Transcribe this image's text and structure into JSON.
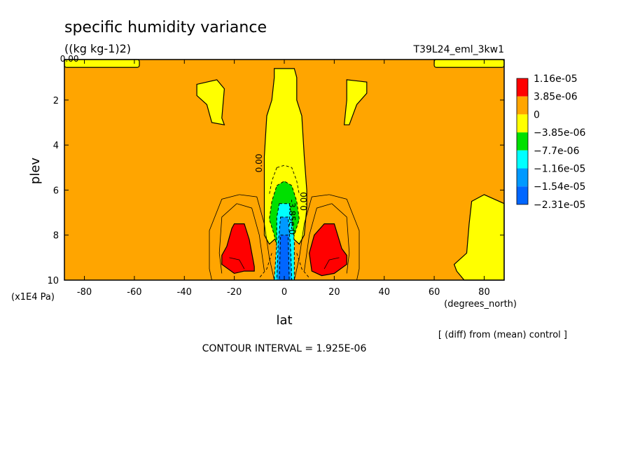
{
  "chart_data": {
    "type": "heatmap",
    "title": "specific humidity variance",
    "units": "((kg kg-1)2)",
    "run_label": "T39L24_eml_3kw1",
    "xlabel": "lat",
    "x_units": "(degrees_north)",
    "ylabel": "plev",
    "y_units": "(x1E4 Pa)",
    "x_ticks": [
      "-80",
      "-60",
      "-40",
      "-20",
      "0",
      "20",
      "40",
      "60",
      "80"
    ],
    "y_ticks": [
      "2",
      "4",
      "6",
      "8",
      "10"
    ],
    "xlim": [
      -88,
      88
    ],
    "ylim": [
      10,
      0.2
    ],
    "legend": {
      "placement": "right",
      "levels": [
        {
          "label": "1.16e-05",
          "color": "#ff0000"
        },
        {
          "label": "3.85e-06",
          "color": "#ffa500"
        },
        {
          "label": "0",
          "color": "#ffff00"
        },
        {
          "label": "−3.85e-06",
          "color": "#00e000"
        },
        {
          "label": "−7.7e-06",
          "color": "#00ffff"
        },
        {
          "label": "−1.16e-05",
          "color": "#0099ff"
        },
        {
          "label": "−1.54e-05",
          "color": "#0066ff"
        },
        {
          "label": "−2.31e-05",
          "color": ""
        }
      ]
    },
    "contour_labels": [
      {
        "text": "0.00",
        "x": -86,
        "y": 0.3,
        "rotate": 0
      },
      {
        "text": "0.00",
        "x": -9,
        "y": 4.8,
        "rotate": -90
      },
      {
        "text": "0.00",
        "x": 9,
        "y": 6.5,
        "rotate": -90
      },
      {
        "text": "-3.85e-0",
        "x": 2,
        "y": 7.2,
        "rotate": 90
      }
    ],
    "regions": {
      "background": "#ffa500",
      "polar_strips": [
        {
          "x": [
            -88,
            -58
          ],
          "y": [
            0.2,
            0.55
          ],
          "color": "#ffff00"
        },
        {
          "x": [
            60,
            88
          ],
          "y": [
            0.2,
            0.55
          ],
          "color": "#ffff00"
        }
      ],
      "yellow_blobs": [
        [
          [
            -35,
            1.3
          ],
          [
            -27,
            1.1
          ],
          [
            -24,
            1.5
          ],
          [
            -25,
            2.8
          ],
          [
            -24,
            3.1
          ],
          [
            -29,
            3.0
          ],
          [
            -31,
            2.2
          ],
          [
            -35,
            1.8
          ]
        ],
        [
          [
            25,
            1.1
          ],
          [
            33,
            1.2
          ],
          [
            33,
            1.7
          ],
          [
            29,
            2.2
          ],
          [
            26,
            3.1
          ],
          [
            24,
            3.1
          ],
          [
            25,
            2.0
          ]
        ],
        [
          [
            75,
            6.5
          ],
          [
            80,
            6.2
          ],
          [
            84,
            6.4
          ],
          [
            88,
            6.6
          ],
          [
            88,
            10
          ],
          [
            72,
            10
          ],
          [
            69,
            9.6
          ],
          [
            68,
            9.3
          ],
          [
            73,
            8.8
          ],
          [
            74,
            7.5
          ]
        ]
      ],
      "yellow_column": [
        [
          -4,
          0.6
        ],
        [
          4,
          0.6
        ],
        [
          5,
          1.0
        ],
        [
          5,
          2.0
        ],
        [
          7,
          2.7
        ],
        [
          8,
          4.5
        ],
        [
          9,
          6.0
        ],
        [
          9,
          6.8
        ],
        [
          8,
          8.0
        ],
        [
          6,
          8.4
        ],
        [
          2,
          8.0
        ],
        [
          -2,
          8.0
        ],
        [
          -6,
          8.4
        ],
        [
          -8,
          8.0
        ],
        [
          -8,
          6.4
        ],
        [
          -8,
          4.5
        ],
        [
          -7,
          2.7
        ],
        [
          -5,
          2.0
        ],
        [
          -4,
          1.0
        ]
      ],
      "green_column": [
        [
          -3,
          5.8
        ],
        [
          0,
          5.6
        ],
        [
          3,
          5.8
        ],
        [
          5,
          6.5
        ],
        [
          6,
          7.3
        ],
        [
          4,
          8.0
        ],
        [
          2,
          9.0
        ],
        [
          -2,
          9.0
        ],
        [
          -4,
          8.0
        ],
        [
          -6,
          7.3
        ],
        [
          -5,
          6.5
        ]
      ],
      "cyan_column": [
        [
          -2,
          6.6
        ],
        [
          2,
          6.6
        ],
        [
          3,
          7.2
        ],
        [
          4,
          8.3
        ],
        [
          4,
          10
        ],
        [
          -4,
          10
        ],
        [
          -3,
          8.3
        ],
        [
          -3,
          7.2
        ]
      ],
      "sky_column": [
        [
          -1.5,
          7.2
        ],
        [
          1.5,
          7.2
        ],
        [
          2.5,
          8.5
        ],
        [
          3,
          10
        ],
        [
          -3,
          10
        ],
        [
          -2.5,
          8.5
        ]
      ],
      "blue_column": [
        [
          -1.5,
          8.0
        ],
        [
          1.5,
          8.0
        ],
        [
          2,
          10
        ],
        [
          -2,
          10
        ]
      ],
      "red_lobes": [
        [
          [
            -20,
            7.5
          ],
          [
            -16,
            7.5
          ],
          [
            -14,
            8.2
          ],
          [
            -12,
            9.4
          ],
          [
            -12,
            9.6
          ],
          [
            -16,
            9.6
          ],
          [
            -20,
            9.7
          ],
          [
            -25,
            9.3
          ],
          [
            -25,
            8.9
          ],
          [
            -23,
            8.5
          ],
          [
            -21,
            7.7
          ]
        ],
        [
          [
            10,
            8.8
          ],
          [
            12,
            8.0
          ],
          [
            16,
            7.5
          ],
          [
            20,
            7.5
          ],
          [
            23,
            8.6
          ],
          [
            25,
            8.9
          ],
          [
            25,
            9.3
          ],
          [
            20,
            9.7
          ],
          [
            15,
            9.8
          ],
          [
            11,
            9.6
          ]
        ]
      ]
    },
    "contour_interval": "CONTOUR INTERVAL = 1.925E-06",
    "diff_note": "[ (diff) from (mean) control ]"
  }
}
